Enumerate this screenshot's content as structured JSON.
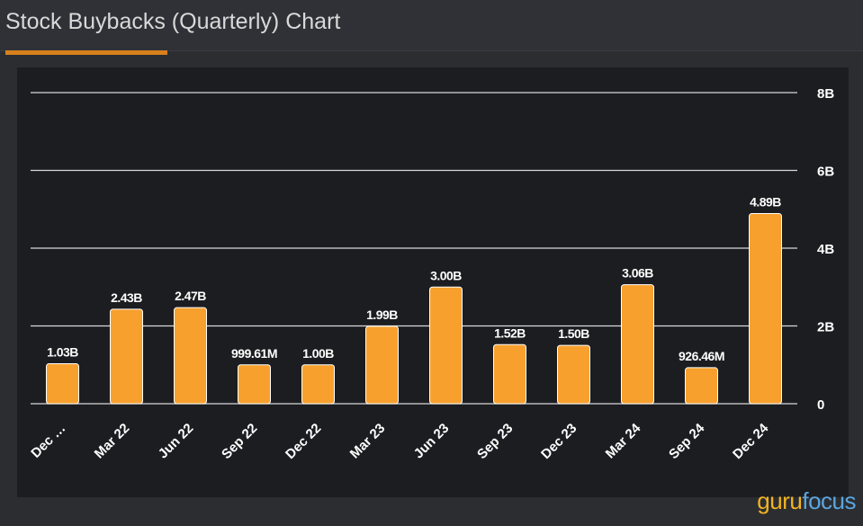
{
  "header": {
    "title": "Stock Buybacks (Quarterly) Chart"
  },
  "brand": {
    "part1": "guru",
    "part2": "focus"
  },
  "colors": {
    "bar": "#f7a02e",
    "grid": "#d9d9d9",
    "accent": "#d8801e"
  },
  "chart_data": {
    "type": "bar",
    "title": "Stock Buybacks (Quarterly) Chart",
    "categories": [
      "Dec …",
      "Mar 22",
      "Jun 22",
      "Sep 22",
      "Dec 22",
      "Mar 23",
      "Jun 23",
      "Sep 23",
      "Dec 23",
      "Mar 24",
      "Sep 24",
      "Dec 24"
    ],
    "values": [
      1.03,
      2.43,
      2.47,
      0.99961,
      1.0,
      1.99,
      3.0,
      1.52,
      1.5,
      3.06,
      0.92646,
      4.89
    ],
    "labels": [
      "1.03B",
      "2.43B",
      "2.47B",
      "999.61M",
      "1.00B",
      "1.99B",
      "3.00B",
      "1.52B",
      "1.50B",
      "3.06B",
      "926.46M",
      "4.89B"
    ],
    "ylim": [
      0,
      8
    ],
    "yticks": [
      0,
      2,
      4,
      6,
      8
    ],
    "ytick_labels": [
      "0",
      "2B",
      "4B",
      "6B",
      "8B"
    ],
    "y_axis_side": "right",
    "grid": true,
    "xlabel": "",
    "ylabel": ""
  }
}
